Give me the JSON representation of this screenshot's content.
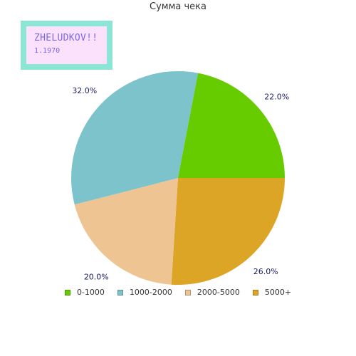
{
  "chart_data": {
    "type": "pie",
    "title": "Сумма чека",
    "categories": [
      "0-1000",
      "1000-2000",
      "2000-5000",
      "5000+"
    ],
    "values": [
      22.0,
      32.0,
      20.0,
      26.0
    ],
    "value_labels": [
      "22.0%",
      "32.0%",
      "20.0%",
      "26.0%"
    ],
    "colors": [
      "#66cc00",
      "#7cc3cc",
      "#eec592",
      "#dca525"
    ],
    "legend_position": "bottom",
    "start": "right, clockwise order: 5000+, 2000-5000, 1000-2000, 0-1000"
  },
  "watermark": {
    "title": "ZHELUDKOV!!",
    "subtitle": "1.1970"
  }
}
